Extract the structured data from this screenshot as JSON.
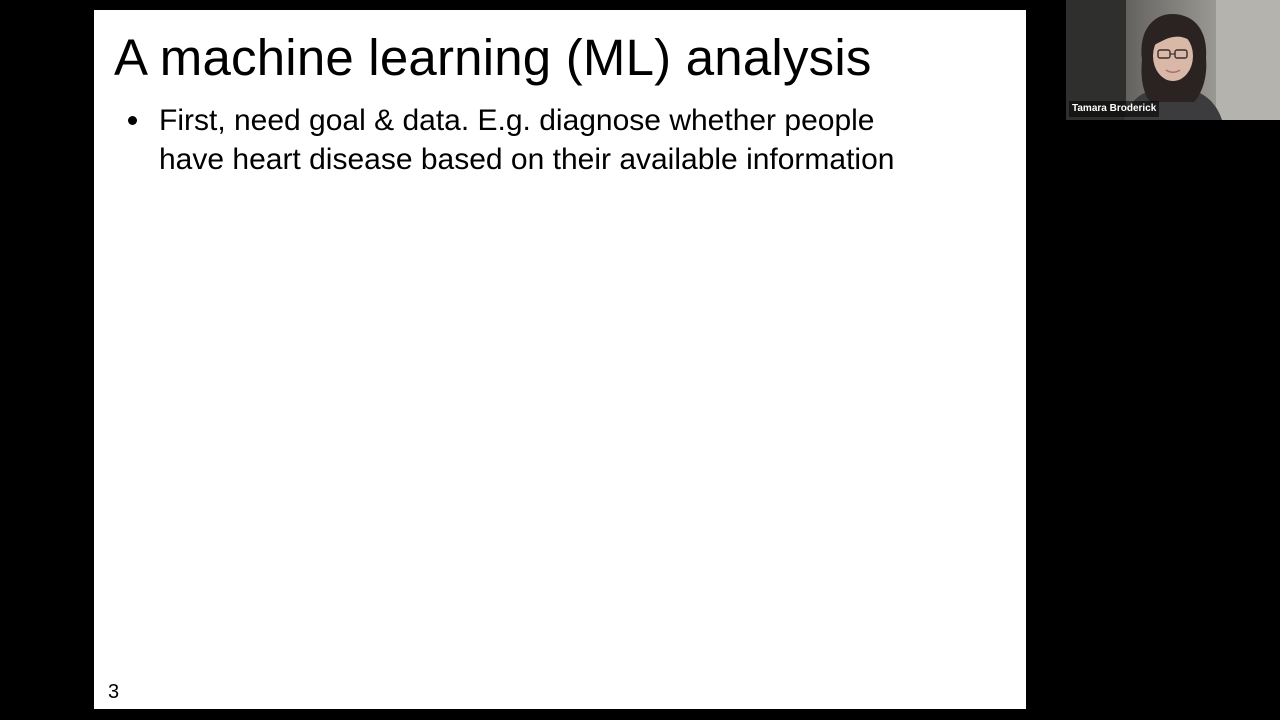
{
  "slide": {
    "title": "A machine learning (ML) analysis",
    "bullets": [
      {
        "lines": [
          "First, need goal & data. E.g. diagnose whether people",
          "have heart disease based on their available information"
        ]
      }
    ],
    "page_number": "3",
    "background_color": "#ffffff"
  },
  "video": {
    "participant_name": "Tamara Broderick"
  },
  "background_color": "#000000"
}
